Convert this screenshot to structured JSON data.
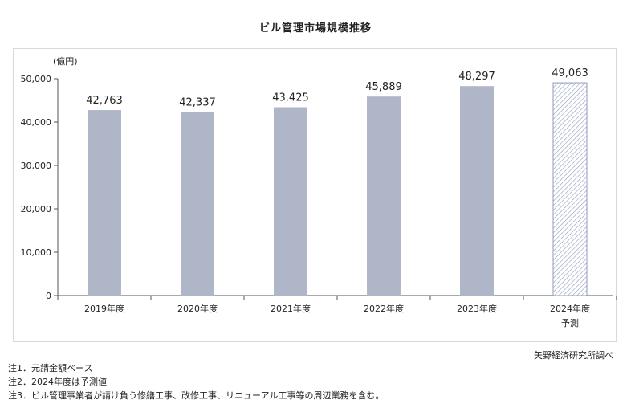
{
  "chart_data": {
    "type": "bar",
    "title": "ビル管理市場規模推移",
    "unit_label": "(億円)",
    "categories": [
      "2019年度",
      "2020年度",
      "2021年度",
      "2022年度",
      "2023年度",
      "2024年度"
    ],
    "category_sublabels": [
      "",
      "",
      "",
      "",
      "",
      "予測"
    ],
    "values": [
      42763,
      42337,
      43425,
      45889,
      48297,
      49063
    ],
    "value_labels": [
      "42,763",
      "42,337",
      "43,425",
      "45,889",
      "48,297",
      "49,063"
    ],
    "forecast": [
      false,
      false,
      false,
      false,
      false,
      true
    ],
    "ylim": [
      0,
      50000
    ],
    "yticks": [
      0,
      10000,
      20000,
      30000,
      40000,
      50000
    ],
    "ytick_labels": [
      "0",
      "10,000",
      "20,000",
      "30,000",
      "40,000",
      "50,000"
    ],
    "grid": false,
    "colors": {
      "bar": "#aeb6c7",
      "forecast_hatch": "#8f9bbd",
      "axis": "#555555"
    }
  },
  "source": "矢野経済研究所調べ",
  "notes": [
    "注1．元請金額ベース",
    "注2．2024年度は予測値",
    "注3．ビル管理事業者が請け負う修繕工事、改修工事、リニューアル工事等の周辺業務を含む。"
  ]
}
